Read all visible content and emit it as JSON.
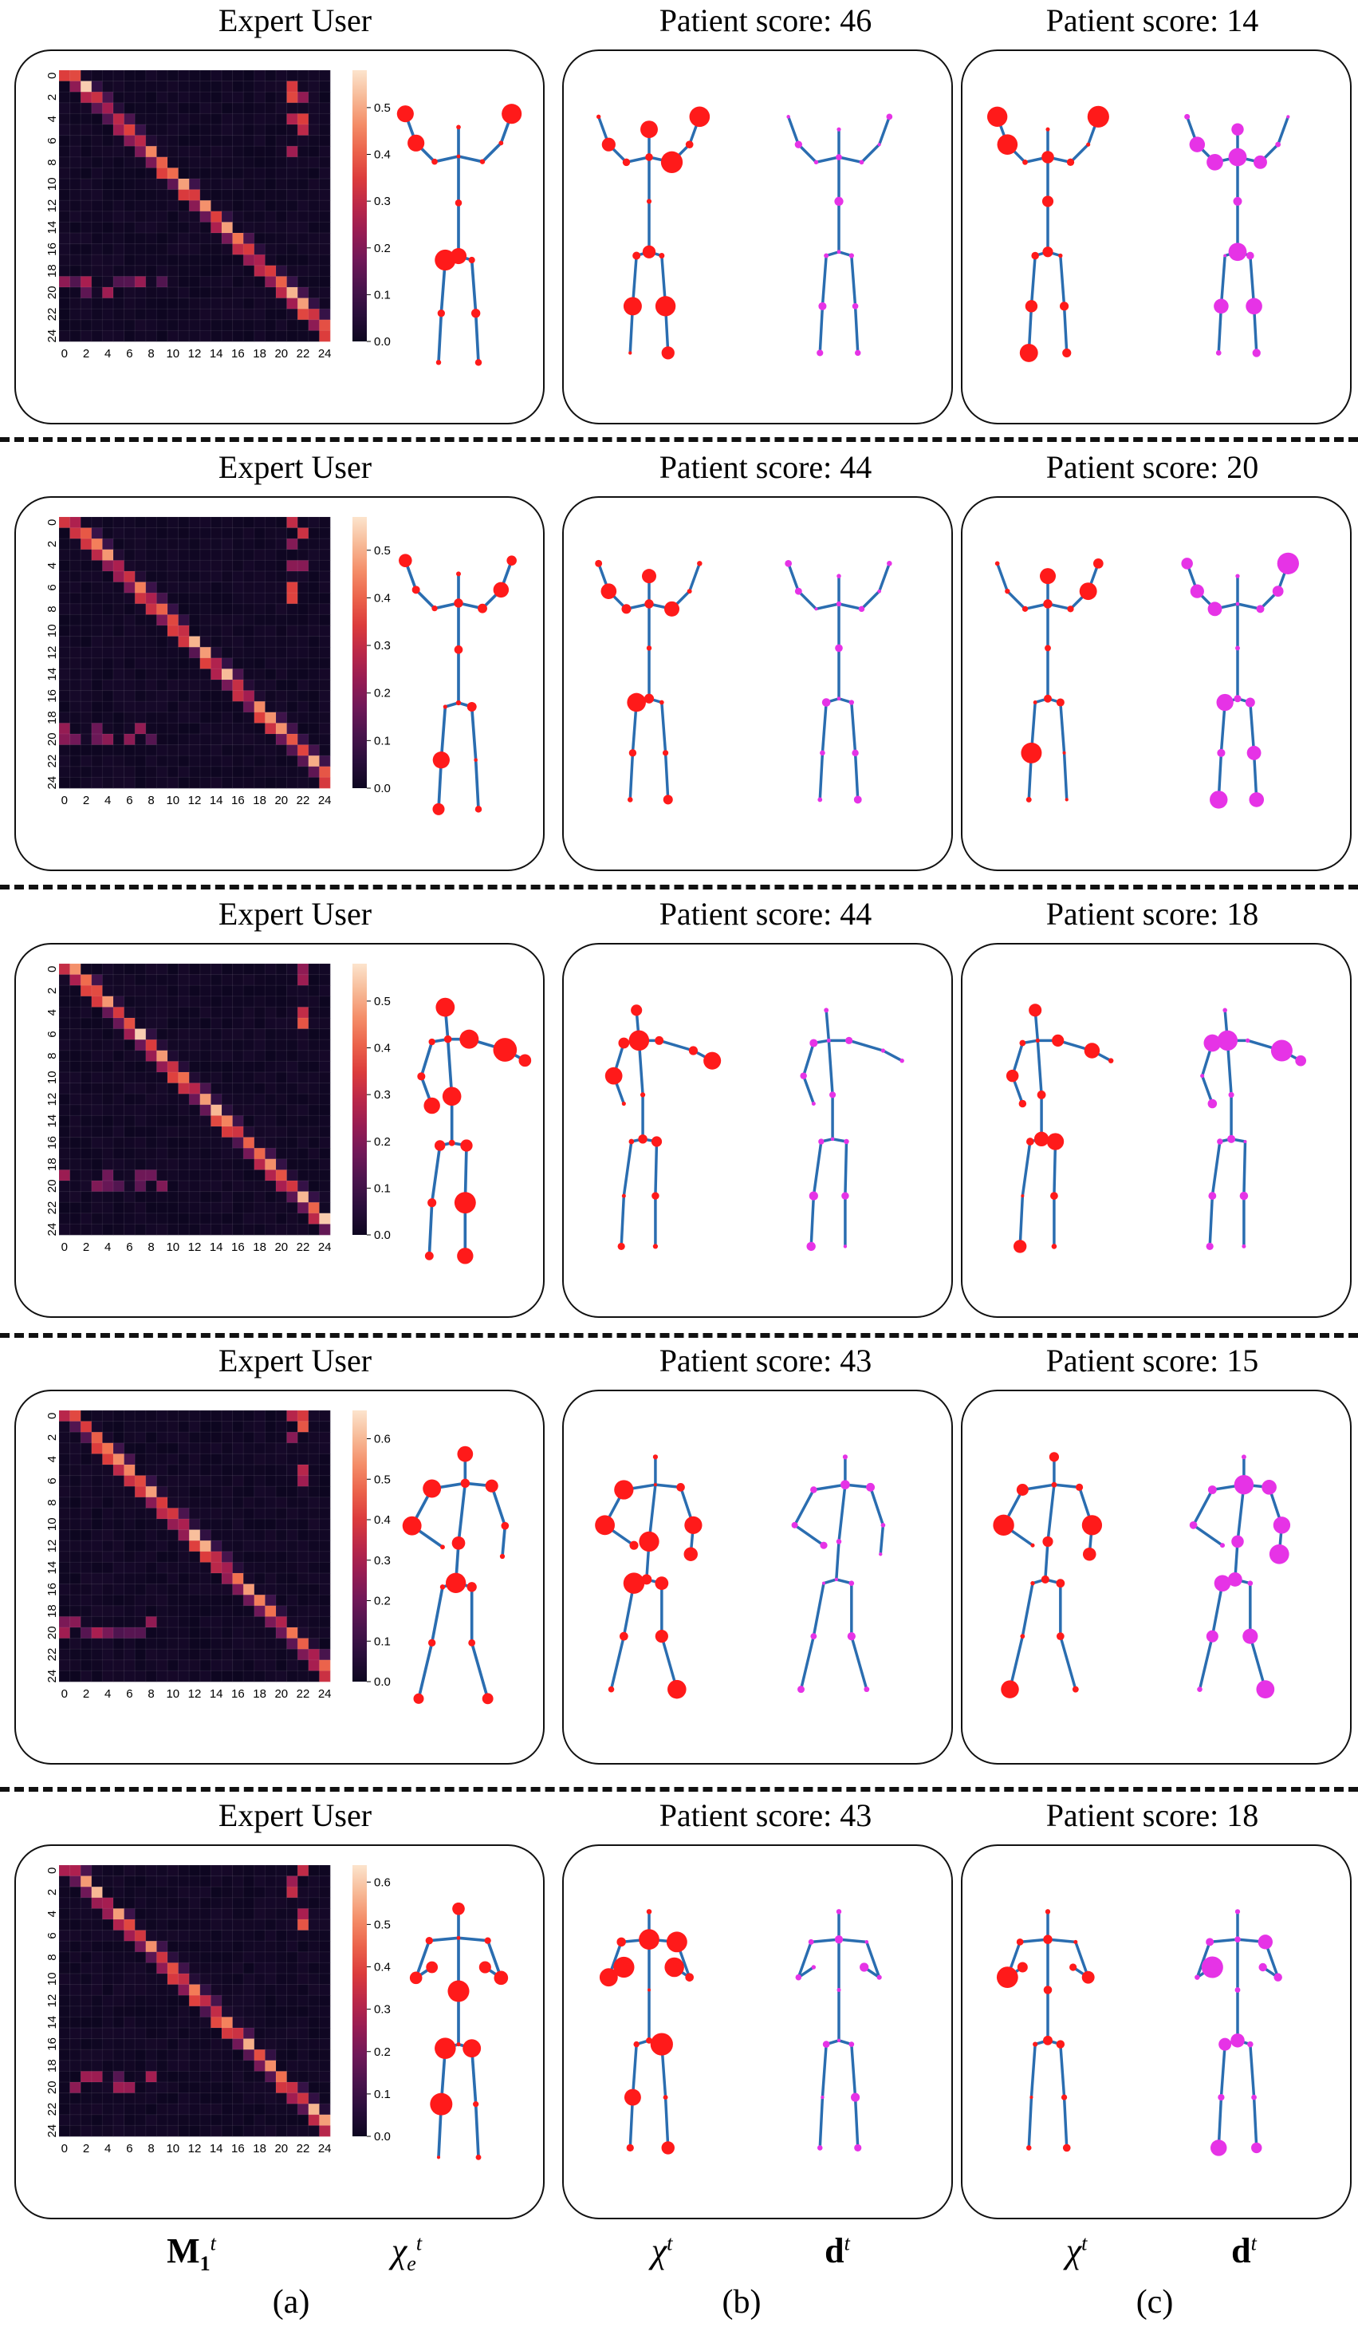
{
  "rows": [
    {
      "expert_title": "Expert User",
      "patient_b_title": "Patient score: 46",
      "patient_c_title": "Patient score: 14",
      "colorbar_ticks": [
        "0.0",
        "0.1",
        "0.2",
        "0.3",
        "0.4",
        "0.5"
      ],
      "colorbar_max": 0.58
    },
    {
      "expert_title": "Expert User",
      "patient_b_title": "Patient score: 44",
      "patient_c_title": "Patient score: 20",
      "colorbar_ticks": [
        "0.0",
        "0.1",
        "0.2",
        "0.3",
        "0.4",
        "0.5"
      ],
      "colorbar_max": 0.57
    },
    {
      "expert_title": "Expert User",
      "patient_b_title": "Patient score: 44",
      "patient_c_title": "Patient score: 18",
      "colorbar_ticks": [
        "0.0",
        "0.1",
        "0.2",
        "0.3",
        "0.4",
        "0.5"
      ],
      "colorbar_max": 0.58
    },
    {
      "expert_title": "Expert User",
      "patient_b_title": "Patient score: 43",
      "patient_c_title": "Patient score: 15",
      "colorbar_ticks": [
        "0.0",
        "0.1",
        "0.2",
        "0.3",
        "0.4",
        "0.5",
        "0.6"
      ],
      "colorbar_max": 0.67
    },
    {
      "expert_title": "Expert User",
      "patient_b_title": "Patient score: 43",
      "patient_c_title": "Patient score: 18",
      "colorbar_ticks": [
        "0.0",
        "0.1",
        "0.2",
        "0.3",
        "0.4",
        "0.5",
        "0.6"
      ],
      "colorbar_max": 0.64
    }
  ],
  "heatmap_y_ticks": [
    "0",
    "2",
    "4",
    "6",
    "8",
    "10",
    "12",
    "14",
    "16",
    "18",
    "20",
    "22",
    "24"
  ],
  "heatmap_x_ticks": [
    "0",
    "2",
    "4",
    "6",
    "8",
    "10",
    "12",
    "14",
    "16",
    "18",
    "20",
    "22",
    "24"
  ],
  "colors": {
    "skeleton": "#2a6db0",
    "joint_attention": "#ff1a1a",
    "joint_difference": "#e633e6",
    "heatmap_low": "#0d0620",
    "heatmap_high": "#fde3c8"
  },
  "footer": {
    "col_a_sym1": "M",
    "col_a_sym1_sub": "1",
    "col_a_sym1_sup": "t",
    "col_a_sym2": "χ",
    "col_a_sym2_sub": "e",
    "col_a_sym2_sup": "t",
    "col_b_sym1": "χ",
    "col_b_sym1_sup": "t",
    "col_b_sym2": "d",
    "col_b_sym2_sup": "t",
    "col_c_sym1": "χ",
    "col_c_sym1_sup": "t",
    "col_c_sym2": "d",
    "col_c_sym2_sup": "t",
    "label_a": "(a)",
    "label_b": "(b)",
    "label_c": "(c)"
  }
}
